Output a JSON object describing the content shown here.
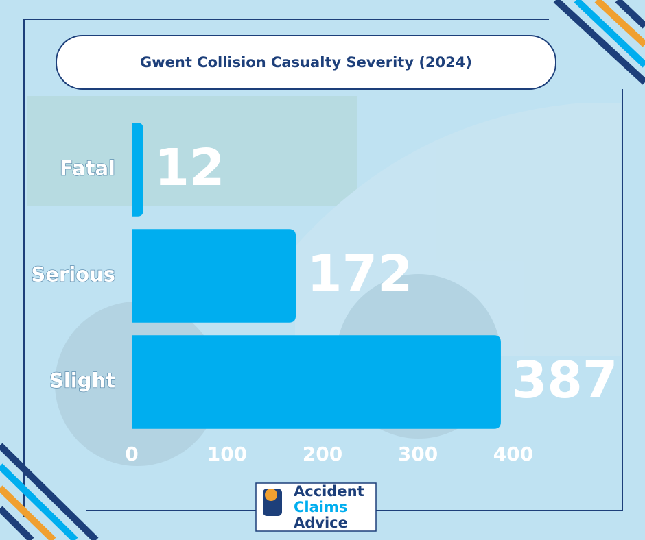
{
  "chart_data": {
    "type": "hbar",
    "title": "Gwent Collision Casualty Severity (2024)",
    "categories": [
      "Fatal",
      "Serious",
      "Slight"
    ],
    "values": [
      12,
      172,
      387
    ],
    "color": "#00aeef",
    "xlim": [
      0,
      400
    ],
    "xticks": [
      0,
      100,
      200,
      300,
      400
    ]
  },
  "logo": {
    "lines": [
      "Accident",
      "Claims",
      "Advice"
    ]
  }
}
